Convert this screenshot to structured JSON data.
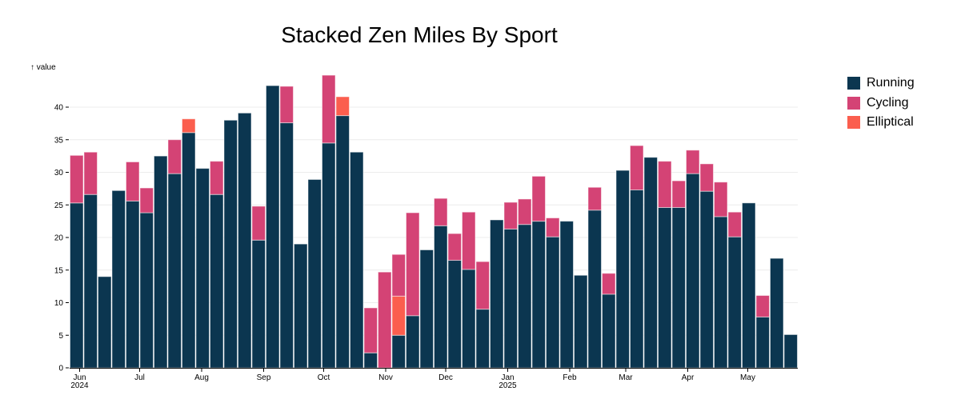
{
  "chart_data": {
    "type": "bar",
    "stacked": true,
    "title": "Stacked Zen Miles By Sport",
    "ylabel": "↑ value",
    "xlabel": "",
    "ylim": [
      0,
      45
    ],
    "yticks": [
      0,
      5,
      10,
      15,
      20,
      25,
      30,
      35,
      40
    ],
    "grid": true,
    "legend_position": "top-right",
    "x_interval": "week",
    "xticks": [
      {
        "date": "2024-06-01",
        "label": "Jun",
        "sub": "2024"
      },
      {
        "date": "2024-07-01",
        "label": "Jul"
      },
      {
        "date": "2024-08-01",
        "label": "Aug"
      },
      {
        "date": "2024-09-01",
        "label": "Sep"
      },
      {
        "date": "2024-10-01",
        "label": "Oct"
      },
      {
        "date": "2024-11-01",
        "label": "Nov"
      },
      {
        "date": "2024-12-01",
        "label": "Dec"
      },
      {
        "date": "2025-01-01",
        "label": "Jan",
        "sub": "2025"
      },
      {
        "date": "2025-02-01",
        "label": "Feb"
      },
      {
        "date": "2025-03-01",
        "label": "Mar"
      },
      {
        "date": "2025-04-01",
        "label": "Apr"
      },
      {
        "date": "2025-05-01",
        "label": "May"
      }
    ],
    "x": [
      "2024-05-27",
      "2024-06-03",
      "2024-06-10",
      "2024-06-17",
      "2024-06-24",
      "2024-07-01",
      "2024-07-08",
      "2024-07-15",
      "2024-07-22",
      "2024-07-29",
      "2024-08-05",
      "2024-08-12",
      "2024-08-19",
      "2024-08-26",
      "2024-09-02",
      "2024-09-09",
      "2024-09-16",
      "2024-09-23",
      "2024-09-30",
      "2024-10-07",
      "2024-10-14",
      "2024-10-21",
      "2024-10-28",
      "2024-11-04",
      "2024-11-11",
      "2024-11-18",
      "2024-11-25",
      "2024-12-02",
      "2024-12-09",
      "2024-12-16",
      "2024-12-23",
      "2024-12-30",
      "2025-01-06",
      "2025-01-13",
      "2025-01-20",
      "2025-01-27",
      "2025-02-03",
      "2025-02-10",
      "2025-02-17",
      "2025-02-24",
      "2025-03-03",
      "2025-03-10",
      "2025-03-17",
      "2025-03-24",
      "2025-03-31",
      "2025-04-07",
      "2025-04-14",
      "2025-04-21",
      "2025-04-28",
      "2025-05-05",
      "2025-05-12",
      "2025-05-19"
    ],
    "series": [
      {
        "name": "Running",
        "color": "#0b3650",
        "values": [
          25.3,
          26.6,
          14.0,
          27.2,
          25.6,
          23.8,
          32.5,
          29.8,
          36.1,
          30.6,
          26.6,
          38.0,
          39.1,
          19.6,
          43.3,
          37.6,
          19.0,
          28.9,
          34.5,
          38.7,
          33.1,
          2.3,
          0,
          5.0,
          8.0,
          18.1,
          21.8,
          16.5,
          15.1,
          9.0,
          22.7,
          21.3,
          22.0,
          22.5,
          20.1,
          22.5,
          14.2,
          24.2,
          11.3,
          30.3,
          27.3,
          32.3,
          24.6,
          24.6,
          29.8,
          27.1,
          23.2,
          20.1,
          25.3,
          7.8,
          16.8,
          5.1
        ]
      },
      {
        "name": "Elliptical",
        "color": "#fb5e4e",
        "values": [
          0,
          0,
          0,
          0,
          0,
          0,
          0,
          0,
          2.1,
          0,
          0,
          0,
          0,
          0,
          0,
          0,
          0,
          0,
          0,
          2.9,
          0,
          0,
          0,
          6.0,
          0,
          0,
          0,
          0,
          0,
          0,
          0,
          0,
          0,
          0,
          0,
          0,
          0,
          0,
          0,
          0,
          0,
          0,
          0,
          0,
          0,
          0,
          0,
          0,
          0,
          0,
          0,
          0
        ]
      },
      {
        "name": "Cycling",
        "color": "#d44375",
        "values": [
          7.3,
          6.5,
          0,
          0,
          6.0,
          3.8,
          0,
          5.2,
          0,
          0,
          5.1,
          0,
          0,
          5.2,
          0,
          5.6,
          0,
          0,
          10.4,
          0,
          0,
          6.9,
          14.7,
          6.4,
          15.8,
          0,
          4.2,
          4.1,
          8.8,
          7.3,
          0,
          4.1,
          3.9,
          6.9,
          2.9,
          0,
          0,
          3.5,
          3.2,
          0,
          6.8,
          0,
          7.1,
          4.1,
          3.6,
          4.2,
          5.3,
          3.8,
          0,
          3.3,
          0,
          0
        ]
      }
    ],
    "legend": [
      {
        "name": "Running",
        "color": "#0b3650"
      },
      {
        "name": "Cycling",
        "color": "#d44375"
      },
      {
        "name": "Elliptical",
        "color": "#fb5e4e"
      }
    ]
  }
}
